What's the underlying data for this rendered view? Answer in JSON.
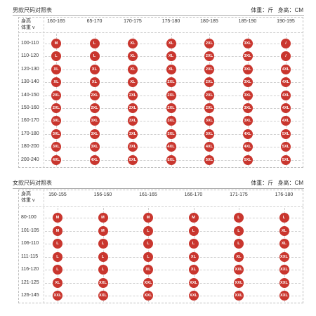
{
  "men": {
    "title": "男款尺码对照表",
    "unit_weight": "体重：斤",
    "unit_height": "身高：CM",
    "corner_top": "身高",
    "corner_bottom": "体重",
    "corner_arrow": "v",
    "columns": [
      "160-165",
      "65-170",
      "170-175",
      "175-180",
      "180-185",
      "185-190",
      "190-195"
    ],
    "rows": [
      {
        "label": "100-110",
        "sizes": [
          "M",
          "L",
          "XL",
          "XL",
          "2XL",
          "3XL",
          "/"
        ]
      },
      {
        "label": "110-120",
        "sizes": [
          "L",
          "L",
          "XL",
          "XL",
          "2XL",
          "3XL",
          "/"
        ]
      },
      {
        "label": "120-130",
        "sizes": [
          "XL",
          "XL",
          "XL",
          "XL",
          "2XL",
          "3XL",
          "4XL"
        ]
      },
      {
        "label": "130-140",
        "sizes": [
          "XL",
          "XL",
          "XL",
          "2XL",
          "2XL",
          "3XL",
          "4XL"
        ]
      },
      {
        "label": "140-150",
        "sizes": [
          "2XL",
          "2XL",
          "2XL",
          "2XL",
          "2XL",
          "3XL",
          "4XL"
        ]
      },
      {
        "label": "150-160",
        "sizes": [
          "2XL",
          "2XL",
          "2XL",
          "2XL",
          "2XL",
          "3XL",
          "4XL"
        ]
      },
      {
        "label": "160-170",
        "sizes": [
          "3XL",
          "3XL",
          "3XL",
          "3XL",
          "3XL",
          "3XL",
          "4XL"
        ]
      },
      {
        "label": "170-180",
        "sizes": [
          "3XL",
          "3XL",
          "3XL",
          "3XL",
          "3XL",
          "4XL",
          "5XL"
        ]
      },
      {
        "label": "180-200",
        "sizes": [
          "3XL",
          "3XL",
          "3XL",
          "4XL",
          "4XL",
          "4XL",
          "5XL"
        ]
      },
      {
        "label": "200-240",
        "sizes": [
          "4XL",
          "4XL",
          "5XL",
          "5XL",
          "5XL",
          "5XL",
          "5XL"
        ]
      }
    ]
  },
  "women": {
    "title": "女款尺码对照表",
    "unit_weight": "体重：斤",
    "unit_height": "身高：CM",
    "corner_top": "身高",
    "corner_bottom": "体重",
    "corner_arrow": "v",
    "columns": [
      "150-155",
      "156-160",
      "161-165",
      "166-170",
      "171-175",
      "176-180"
    ],
    "rows": [
      {
        "label": "80-100",
        "sizes": [
          "M",
          "M",
          "M",
          "M",
          "L",
          "L"
        ]
      },
      {
        "label": "101-105",
        "sizes": [
          "M",
          "M",
          "L",
          "L",
          "L",
          "XL"
        ]
      },
      {
        "label": "106-110",
        "sizes": [
          "L",
          "L",
          "L",
          "L",
          "L",
          "XL"
        ]
      },
      {
        "label": "111-115",
        "sizes": [
          "L",
          "L",
          "L",
          "XL",
          "XL",
          "XXL"
        ]
      },
      {
        "label": "116-120",
        "sizes": [
          "L",
          "L",
          "XL",
          "XL",
          "XXL",
          "XXL"
        ]
      },
      {
        "label": "121-125",
        "sizes": [
          "XL",
          "XXL",
          "XXL",
          "XXL",
          "XXL",
          "XXL"
        ]
      },
      {
        "label": "126-145",
        "sizes": [
          "XXL",
          "XXL",
          "XXL",
          "XXL",
          "XXL",
          "XXL"
        ]
      }
    ]
  },
  "colors": {
    "dot": "#c9362e",
    "text": "#333333",
    "dashed": "#cfcfcf"
  }
}
